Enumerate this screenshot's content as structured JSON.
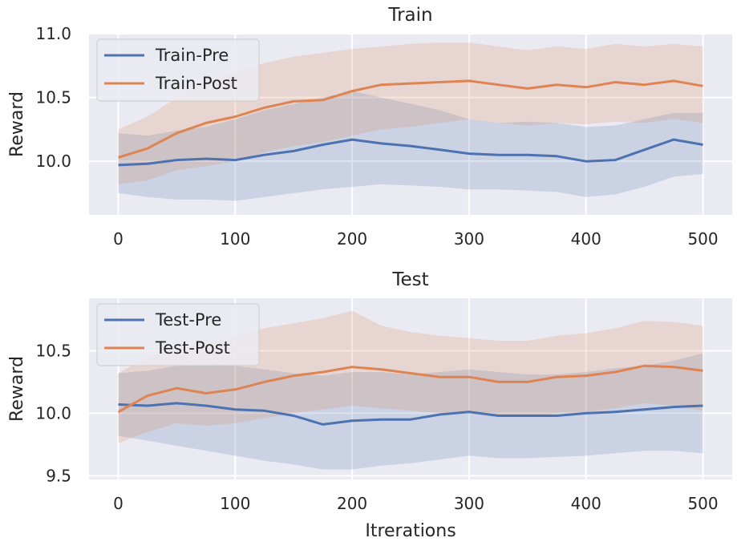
{
  "colors": {
    "background": "#eaeaf2",
    "grid": "#ffffff",
    "pre": "#4c72b0",
    "post": "#dd8452",
    "text": "#262626"
  },
  "chart_data": [
    {
      "type": "line",
      "title": "Train",
      "xlabel": "",
      "ylabel": "Reward",
      "xlim": [
        -25,
        525
      ],
      "ylim": [
        9.58,
        11.0
      ],
      "xticks": [
        0,
        100,
        200,
        300,
        400,
        500
      ],
      "xtick_labels": [
        "0",
        "100",
        "200",
        "300",
        "400",
        "500"
      ],
      "yticks": [
        10.0,
        10.5,
        11.0
      ],
      "ytick_labels": [
        "10.0",
        "10.5",
        "11.0"
      ],
      "grid": true,
      "legend": "top-left",
      "series": [
        {
          "name": "Train-Pre",
          "color": "#4c72b0",
          "x": [
            0,
            25,
            50,
            75,
            100,
            125,
            150,
            175,
            200,
            225,
            250,
            275,
            300,
            325,
            350,
            375,
            400,
            425,
            450,
            475,
            500
          ],
          "y": [
            9.97,
            9.98,
            10.01,
            10.02,
            10.01,
            10.05,
            10.08,
            10.13,
            10.17,
            10.14,
            10.12,
            10.09,
            10.06,
            10.05,
            10.05,
            10.04,
            10.0,
            10.01,
            10.09,
            10.17,
            10.13
          ],
          "lower": [
            9.75,
            9.72,
            9.7,
            9.7,
            9.69,
            9.72,
            9.75,
            9.78,
            9.8,
            9.82,
            9.81,
            9.8,
            9.78,
            9.78,
            9.77,
            9.76,
            9.72,
            9.74,
            9.8,
            9.88,
            9.9
          ],
          "upper": [
            10.22,
            10.2,
            10.24,
            10.27,
            10.33,
            10.4,
            10.45,
            10.5,
            10.55,
            10.5,
            10.45,
            10.4,
            10.33,
            10.3,
            10.31,
            10.3,
            10.27,
            10.28,
            10.33,
            10.38,
            10.38
          ]
        },
        {
          "name": "Train-Post",
          "color": "#dd8452",
          "x": [
            0,
            25,
            50,
            75,
            100,
            125,
            150,
            175,
            200,
            225,
            250,
            275,
            300,
            325,
            350,
            375,
            400,
            425,
            450,
            475,
            500
          ],
          "y": [
            10.03,
            10.1,
            10.22,
            10.3,
            10.35,
            10.42,
            10.47,
            10.48,
            10.55,
            10.6,
            10.61,
            10.62,
            10.63,
            10.6,
            10.57,
            10.6,
            10.58,
            10.62,
            10.6,
            10.63,
            10.59
          ],
          "lower": [
            9.82,
            9.85,
            9.93,
            9.96,
            10.0,
            10.07,
            10.12,
            10.15,
            10.2,
            10.25,
            10.27,
            10.3,
            10.33,
            10.3,
            10.28,
            10.3,
            10.29,
            10.31,
            10.3,
            10.33,
            10.3
          ],
          "upper": [
            10.25,
            10.35,
            10.5,
            10.62,
            10.7,
            10.77,
            10.82,
            10.85,
            10.88,
            10.9,
            10.92,
            10.93,
            10.93,
            10.9,
            10.87,
            10.9,
            10.88,
            10.92,
            10.9,
            10.92,
            10.9
          ]
        }
      ]
    },
    {
      "type": "line",
      "title": "Test",
      "xlabel": "Itrerations",
      "ylabel": "Reward",
      "xlim": [
        -25,
        525
      ],
      "ylim": [
        9.47,
        10.92
      ],
      "xticks": [
        0,
        100,
        200,
        300,
        400,
        500
      ],
      "xtick_labels": [
        "0",
        "100",
        "200",
        "300",
        "400",
        "500"
      ],
      "yticks": [
        9.5,
        10.0,
        10.5
      ],
      "ytick_labels": [
        "9.5",
        "10.0",
        "10.5"
      ],
      "grid": true,
      "legend": "top-left",
      "series": [
        {
          "name": "Test-Pre",
          "color": "#4c72b0",
          "x": [
            0,
            25,
            50,
            75,
            100,
            125,
            150,
            175,
            200,
            225,
            250,
            275,
            300,
            325,
            350,
            375,
            400,
            425,
            450,
            475,
            500
          ],
          "y": [
            10.07,
            10.06,
            10.08,
            10.06,
            10.03,
            10.02,
            9.98,
            9.91,
            9.94,
            9.95,
            9.95,
            9.99,
            10.01,
            9.98,
            9.98,
            9.98,
            10.0,
            10.01,
            10.03,
            10.05,
            10.06
          ],
          "lower": [
            9.82,
            9.78,
            9.74,
            9.7,
            9.66,
            9.62,
            9.59,
            9.55,
            9.55,
            9.58,
            9.6,
            9.63,
            9.66,
            9.64,
            9.64,
            9.65,
            9.66,
            9.68,
            9.7,
            9.7,
            9.68
          ],
          "upper": [
            10.32,
            10.34,
            10.38,
            10.4,
            10.38,
            10.35,
            10.32,
            10.3,
            10.33,
            10.33,
            10.31,
            10.33,
            10.35,
            10.33,
            10.31,
            10.31,
            10.33,
            10.36,
            10.38,
            10.42,
            10.48
          ]
        },
        {
          "name": "Test-Post",
          "color": "#dd8452",
          "x": [
            0,
            25,
            50,
            75,
            100,
            125,
            150,
            175,
            200,
            225,
            250,
            275,
            300,
            325,
            350,
            375,
            400,
            425,
            450,
            475,
            500
          ],
          "y": [
            10.01,
            10.14,
            10.2,
            10.16,
            10.19,
            10.25,
            10.3,
            10.33,
            10.37,
            10.35,
            10.32,
            10.29,
            10.29,
            10.25,
            10.25,
            10.29,
            10.3,
            10.33,
            10.38,
            10.37,
            10.34
          ],
          "lower": [
            9.76,
            9.85,
            9.92,
            9.9,
            9.92,
            9.96,
            10.0,
            10.03,
            10.06,
            10.04,
            10.02,
            10.0,
            10.0,
            9.97,
            9.97,
            10.0,
            10.01,
            10.04,
            10.08,
            10.06,
            10.02
          ],
          "upper": [
            10.32,
            10.45,
            10.52,
            10.55,
            10.62,
            10.68,
            10.72,
            10.76,
            10.82,
            10.7,
            10.65,
            10.62,
            10.6,
            10.58,
            10.58,
            10.62,
            10.64,
            10.68,
            10.74,
            10.73,
            10.7
          ]
        }
      ]
    }
  ]
}
